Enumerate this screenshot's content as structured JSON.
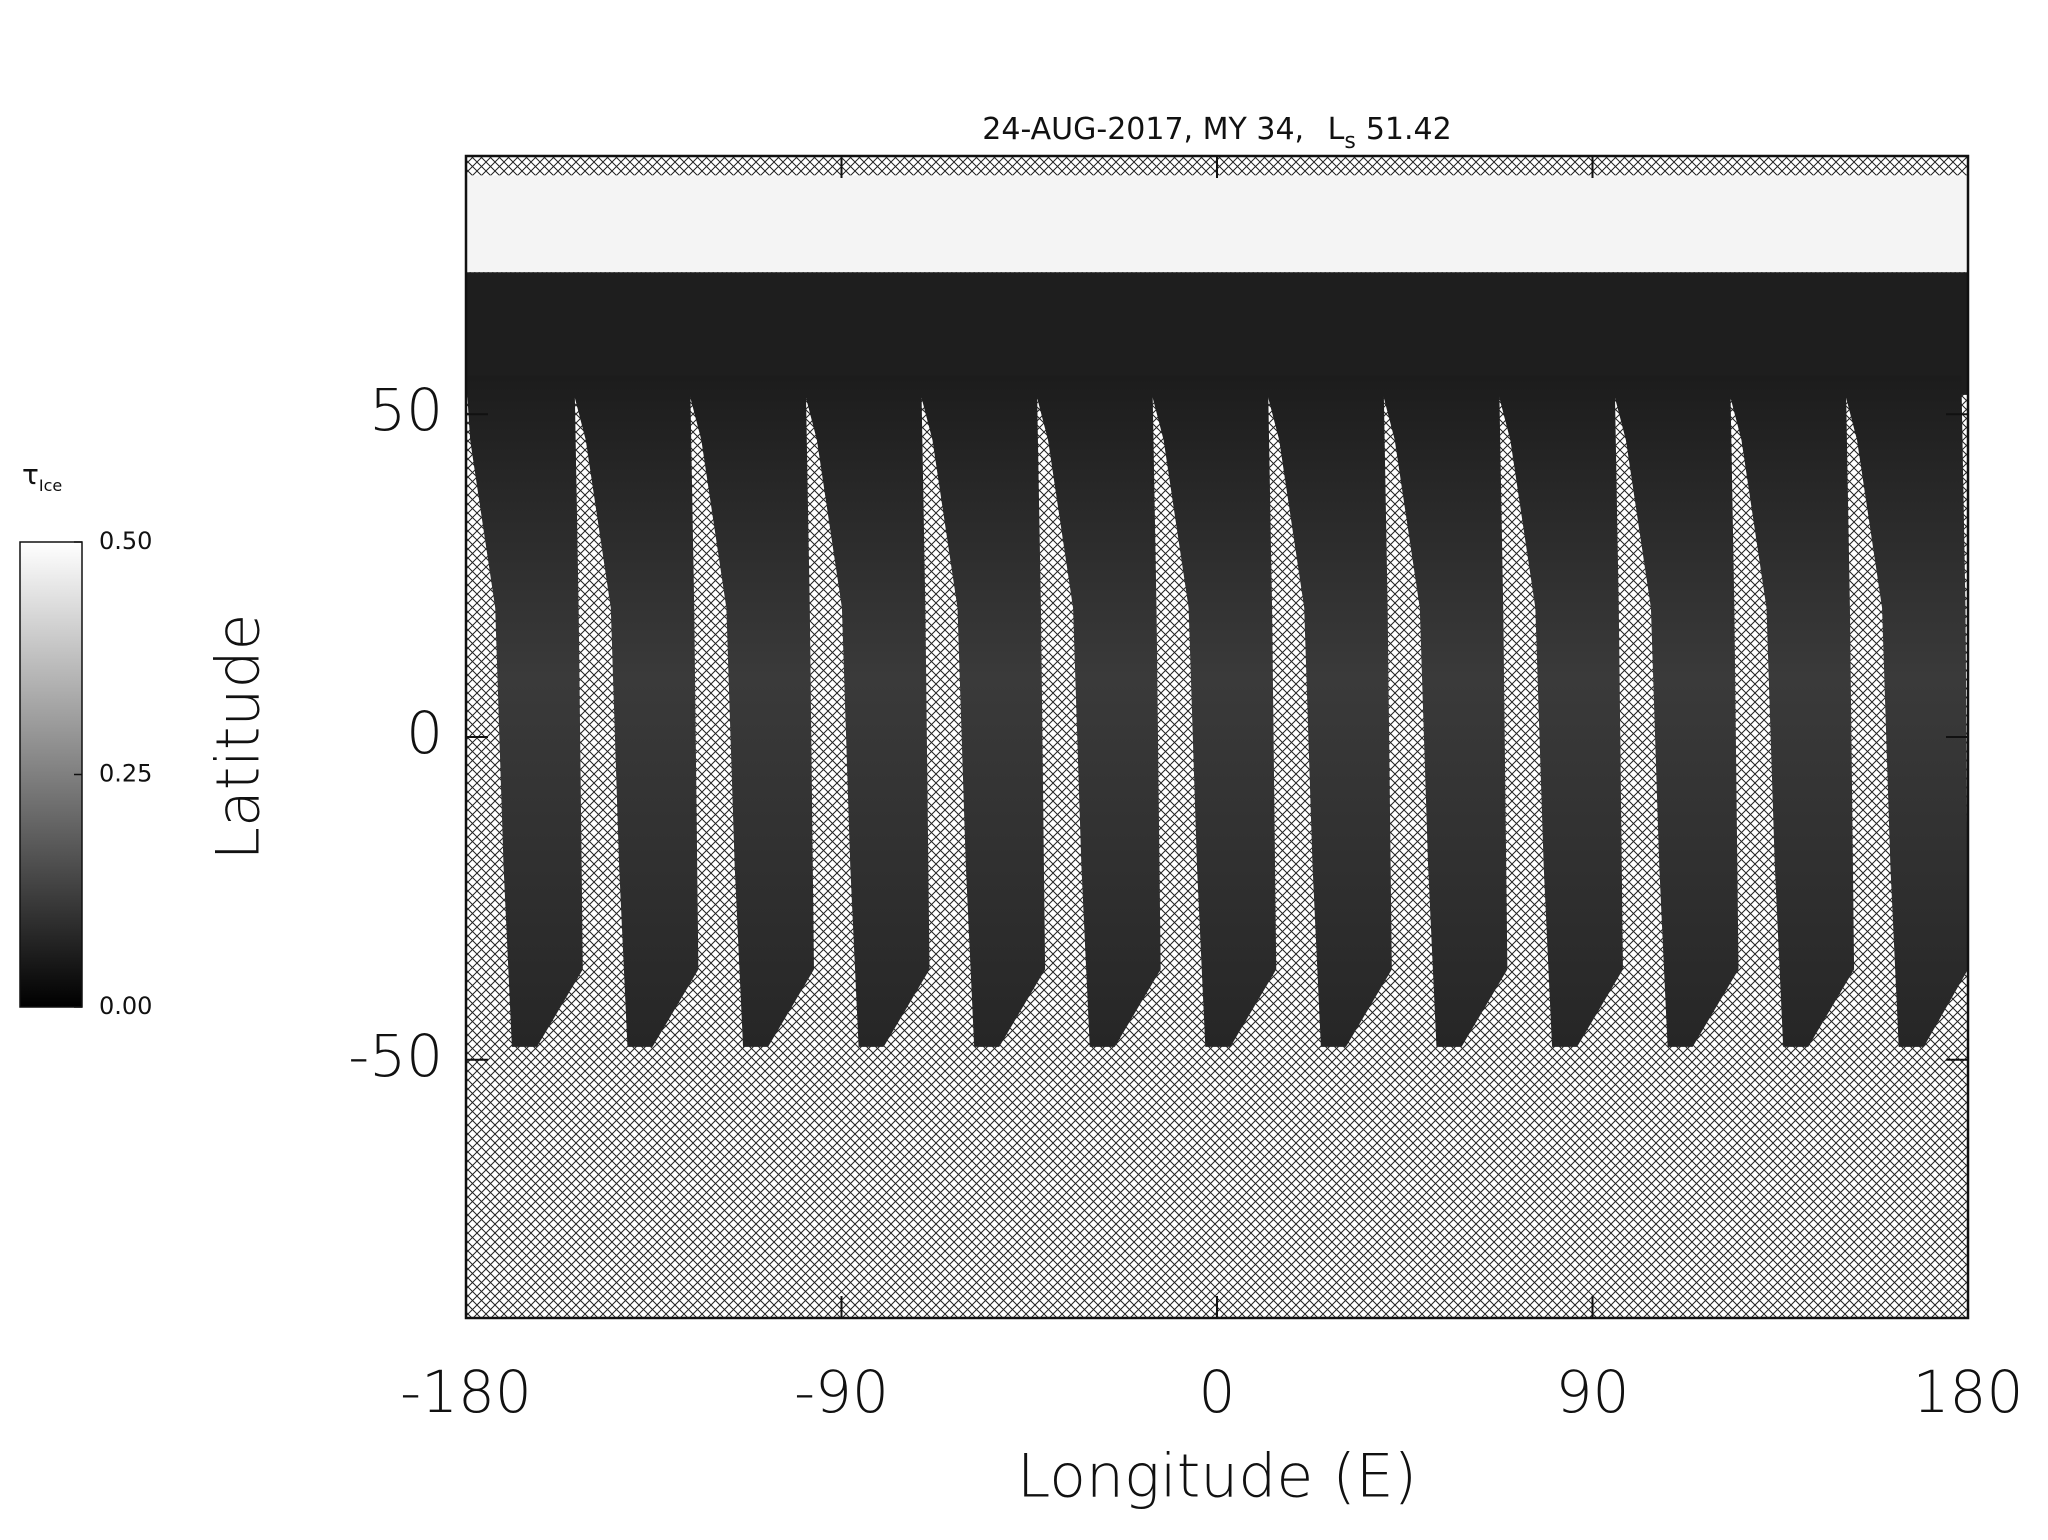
{
  "chart_data": {
    "type": "map",
    "title": {
      "text": "24-AUG-2017, MY 34,",
      "symbol": "L",
      "subscript": "s",
      "value": "51.42"
    },
    "x_label": "Longitude (E)",
    "y_label": "Latitude",
    "xlim": [
      -180,
      180
    ],
    "ylim": [
      -90,
      90
    ],
    "xticks": [
      -180,
      -90,
      0,
      90,
      180
    ],
    "yticks": [
      -50,
      0,
      50
    ],
    "colorbar": {
      "symbol": "τ",
      "subscript": "Ice",
      "lim": [
        0,
        0.5
      ],
      "ticks": [
        {
          "value": 0.5,
          "label": "0.50"
        },
        {
          "value": 0.25,
          "label": "0.25"
        },
        {
          "value": 0,
          "label": "0.00"
        }
      ],
      "colors": [
        "#000000",
        "#ffffff"
      ]
    }
  }
}
